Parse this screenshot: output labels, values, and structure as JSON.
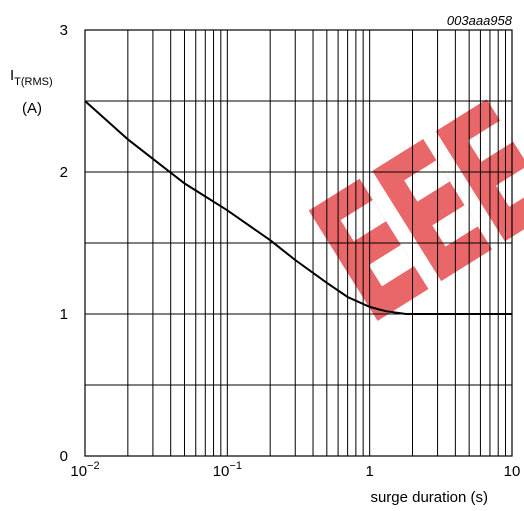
{
  "chart_data": {
    "type": "line",
    "figure_code": "003aaa958",
    "ylabel": {
      "symbol": "I",
      "subscript": "T(RMS)",
      "unit": "(A)"
    },
    "xlabel": "surge duration (s)",
    "x_scale": "log",
    "xlim": [
      0.01,
      10
    ],
    "ylim": [
      0,
      3
    ],
    "y_ticks": [
      "0",
      "1",
      "2",
      "3"
    ],
    "x_ticks": [
      {
        "value": 0.01,
        "base": "10",
        "exp": "−2"
      },
      {
        "value": 0.1,
        "base": "10",
        "exp": "−1"
      },
      {
        "value": 1,
        "base": "1",
        "exp": ""
      },
      {
        "value": 10,
        "base": "10",
        "exp": ""
      }
    ],
    "grid": true,
    "series": [
      {
        "x": [
          0.01,
          0.02,
          0.05,
          0.1,
          0.2,
          0.3,
          0.5,
          0.7,
          1.0,
          1.3,
          1.8,
          3,
          5,
          10
        ],
        "y": [
          2.5,
          2.23,
          1.92,
          1.73,
          1.52,
          1.38,
          1.22,
          1.12,
          1.05,
          1.02,
          1.0,
          1.0,
          1.0,
          1.0
        ]
      }
    ],
    "watermark_color": "#e0282a"
  }
}
